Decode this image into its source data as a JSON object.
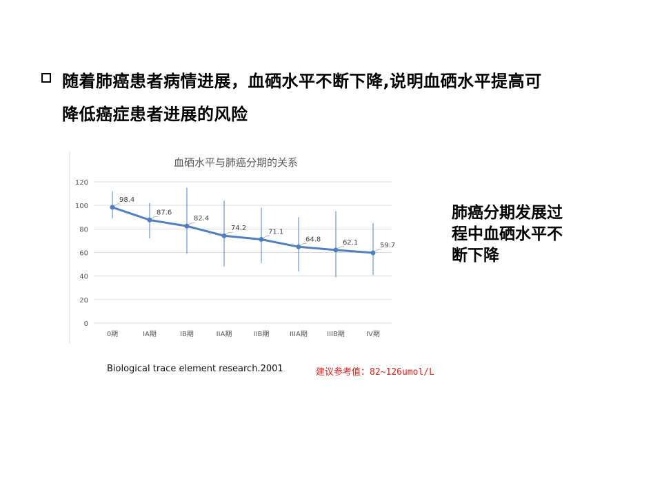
{
  "bullet": {
    "line1": "随着肺癌患者病情进展，血硒水平不断下降,说明血硒水平提高可",
    "line2": "降低癌症患者进展的风险"
  },
  "side_note": {
    "line1": "肺癌分期发展过",
    "line2": "程中血硒水平不",
    "line3": "断下降"
  },
  "citation": "Biological trace element research.2001",
  "reference_value": "建议参考值：82~126umol/L",
  "colors": {
    "line": "#4f7fc0",
    "error_bar": "#4f7fc0",
    "grid": "#d9d9d9",
    "axis_text": "#595959",
    "reference_value": "#e0201b"
  },
  "chart_data": {
    "type": "line",
    "title": "血硒水平与肺癌分期的关系",
    "categories": [
      "0期",
      "IA期",
      "IB期",
      "IIA期",
      "IIB期",
      "IIIA期",
      "IIIB期",
      "IV期"
    ],
    "series": [
      {
        "values": [
          98.4,
          87.6,
          82.4,
          74.2,
          71.1,
          64.8,
          62.1,
          59.7
        ],
        "error_low": [
          89,
          72,
          59,
          48,
          51,
          44,
          39,
          41
        ],
        "error_high": [
          112,
          102,
          115,
          104,
          98,
          90,
          95,
          85
        ]
      }
    ],
    "data_labels": [
      "98.4",
      "87.6",
      "82.4",
      "74.2",
      "71.1",
      "64.8",
      "62.1",
      "59.7"
    ],
    "ylim": [
      0,
      120
    ],
    "yticks": [
      0,
      20,
      40,
      60,
      80,
      100,
      120
    ],
    "ytick_labels": [
      "0",
      "20",
      "40",
      "60",
      "80",
      "100",
      "120"
    ],
    "grid": true,
    "xlabel": "",
    "ylabel": ""
  }
}
